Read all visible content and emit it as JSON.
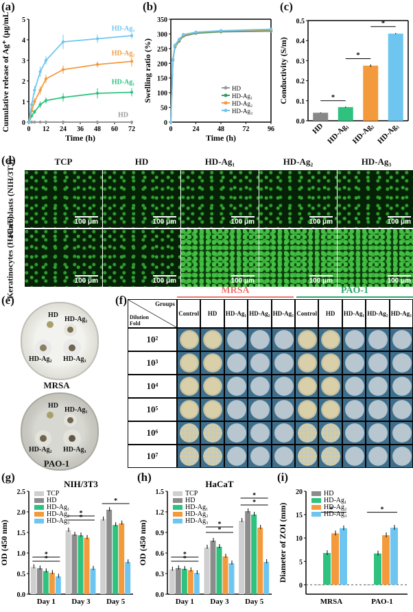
{
  "panel_labels": {
    "a": "(a)",
    "b": "(b)",
    "c": "(c)",
    "d": "(d)",
    "e": "(e)",
    "f": "(f)",
    "g": "(g)",
    "h": "(h)",
    "i": "(i)"
  },
  "chart_data": [
    {
      "id": "a",
      "type": "line",
      "xlabel": "Time (h)",
      "ylabel": "Cumulative release of Ag⁺ (μg/mL)",
      "xlim": [
        0,
        72
      ],
      "ylim": [
        0,
        5
      ],
      "xticks": [
        0,
        12,
        24,
        36,
        48,
        60,
        72
      ],
      "yticks": [
        0,
        1,
        2,
        3,
        4,
        5
      ],
      "x": [
        0,
        2,
        4,
        8,
        12,
        24,
        48,
        72
      ],
      "series": [
        {
          "name": "HD",
          "color": "#999999",
          "values": [
            0,
            0,
            0,
            0,
            0,
            0,
            0,
            0
          ]
        },
        {
          "name": "HD-Ag₁",
          "color": "#2ec27e",
          "values": [
            0,
            0.3,
            0.5,
            0.85,
            1.05,
            1.2,
            1.4,
            1.45
          ]
        },
        {
          "name": "HD-Ag₂",
          "color": "#f39a3d",
          "values": [
            0,
            0.55,
            1.0,
            1.55,
            2.1,
            2.55,
            2.8,
            2.95
          ]
        },
        {
          "name": "HD-Ag₃",
          "color": "#6ec6f0",
          "values": [
            0,
            0.85,
            1.55,
            2.45,
            3.0,
            3.9,
            4.05,
            4.2
          ]
        }
      ],
      "errors": [
        [
          0,
          0,
          0,
          0,
          0,
          0,
          0,
          0
        ],
        [
          0,
          0.05,
          0.1,
          0.15,
          0.15,
          0.2,
          0.25,
          0.2
        ],
        [
          0,
          0.1,
          0.15,
          0.2,
          0.2,
          0.2,
          0.15,
          0.25
        ],
        [
          0,
          0.1,
          0.2,
          0.25,
          0.2,
          0.35,
          0.2,
          0.15
        ]
      ]
    },
    {
      "id": "b",
      "type": "line",
      "xlabel": "Time (h)",
      "ylabel": "Swelling ratio (%)",
      "xlim": [
        0,
        96
      ],
      "ylim": [
        0,
        350
      ],
      "xticks": [
        0,
        24,
        48,
        72,
        96
      ],
      "yticks": [
        0,
        50,
        100,
        150,
        200,
        250,
        300,
        350
      ],
      "x": [
        0,
        2,
        4,
        8,
        12,
        24,
        48,
        96
      ],
      "series": [
        {
          "name": "HD",
          "color": "#999999",
          "values": [
            0,
            210,
            255,
            275,
            292,
            302,
            307,
            309
          ]
        },
        {
          "name": "HD-Ag₁",
          "color": "#2e9c5e",
          "values": [
            0,
            212,
            258,
            278,
            294,
            303,
            308,
            312
          ]
        },
        {
          "name": "HD-Ag₂",
          "color": "#f39a3d",
          "values": [
            0,
            214,
            260,
            280,
            296,
            305,
            310,
            314
          ]
        },
        {
          "name": "HD-Ag₃",
          "color": "#6ec6f0",
          "values": [
            0,
            213,
            262,
            282,
            298,
            306,
            311,
            316
          ]
        }
      ]
    },
    {
      "id": "c",
      "type": "bar",
      "ylabel": "Conductivity (S/m)",
      "ylim": [
        0,
        0.5
      ],
      "yticks": [
        0.0,
        0.1,
        0.2,
        0.3,
        0.4,
        0.5
      ],
      "categories": [
        "HD",
        "HD-Ag₁",
        "HD-Ag₂",
        "HD-Ag₃"
      ],
      "values": [
        0.04,
        0.068,
        0.275,
        0.435
      ],
      "errors": [
        0.002,
        0.003,
        0.006,
        0.003
      ],
      "colors": [
        "#888888",
        "#2ec27e",
        "#f39a3d",
        "#6ec6f0"
      ],
      "sig": "*"
    },
    {
      "id": "g",
      "type": "bar",
      "title": "NIH/3T3",
      "ylabel": "OD (450 nm)",
      "ylim": [
        0,
        2.5
      ],
      "yticks": [
        0.0,
        0.5,
        1.0,
        1.5,
        2.0,
        2.5
      ],
      "categories": [
        "Day 1",
        "Day 3",
        "Day 5"
      ],
      "series": [
        {
          "name": "TCP",
          "color": "#cfcfcf",
          "values": [
            0.66,
            1.55,
            1.82
          ]
        },
        {
          "name": "HD",
          "color": "#8c8c8c",
          "values": [
            0.63,
            1.45,
            2.05
          ]
        },
        {
          "name": "HD-Ag₁",
          "color": "#2ec27e",
          "values": [
            0.56,
            1.43,
            1.68
          ]
        },
        {
          "name": "HD-Ag₂",
          "color": "#f39a3d",
          "values": [
            0.52,
            1.37,
            1.72
          ]
        },
        {
          "name": "HD-Ag₃",
          "color": "#6ec6f0",
          "values": [
            0.43,
            0.62,
            0.78
          ]
        }
      ]
    },
    {
      "id": "h",
      "type": "bar",
      "title": "HaCaT",
      "ylabel": "OD (450 nm)",
      "ylim": [
        0,
        1.5
      ],
      "yticks": [
        0.0,
        0.3,
        0.6,
        0.9,
        1.2,
        1.5
      ],
      "categories": [
        "Day 1",
        "Day 3",
        "Day 5"
      ],
      "series": [
        {
          "name": "TCP",
          "color": "#cfcfcf",
          "values": [
            0.36,
            0.68,
            1.07
          ]
        },
        {
          "name": "HD",
          "color": "#8c8c8c",
          "values": [
            0.38,
            0.78,
            1.21
          ]
        },
        {
          "name": "HD-Ag₁",
          "color": "#2ec27e",
          "values": [
            0.37,
            0.69,
            1.16
          ]
        },
        {
          "name": "HD-Ag₂",
          "color": "#f39a3d",
          "values": [
            0.35,
            0.55,
            0.97
          ]
        },
        {
          "name": "HD-Ag₃",
          "color": "#6ec6f0",
          "values": [
            0.31,
            0.45,
            0.47
          ]
        }
      ]
    },
    {
      "id": "i",
      "type": "bar",
      "ylabel": "Diameter of ZOI (mm)",
      "ylim": [
        -2,
        20
      ],
      "yticks": [
        0,
        5,
        10,
        15,
        20
      ],
      "categories": [
        "MRSA",
        "PAO-1"
      ],
      "series": [
        {
          "name": "HD",
          "color": "#8c8c8c",
          "values": [
            0,
            0
          ]
        },
        {
          "name": "HD-Ag₁",
          "color": "#2ec27e",
          "values": [
            6.8,
            6.7
          ]
        },
        {
          "name": "HD-Ag₂",
          "color": "#f39a3d",
          "values": [
            11.0,
            10.6
          ]
        },
        {
          "name": "HD-Ag₃",
          "color": "#6ec6f0",
          "values": [
            12.1,
            12.2
          ]
        }
      ]
    }
  ],
  "panel_d": {
    "columns": [
      "TCP",
      "HD",
      "HD-Ag₁",
      "HD-Ag₂",
      "HD-Ag₃"
    ],
    "rows": [
      "Fibroblasts (NIH/3T3)",
      "Keratinocytes (HaCaT)"
    ],
    "scale": "100 μm"
  },
  "panel_e": {
    "plates": [
      {
        "name": "MRSA",
        "labels": [
          "HD",
          "HD-Ag₁",
          "HD-Ag₂",
          "HD-Ag₃"
        ]
      },
      {
        "name": "PAO-1",
        "labels": [
          "HD",
          "HD-Ag₁",
          "HD-Ag₂",
          "HD-Ag₃"
        ]
      }
    ]
  },
  "panel_f": {
    "corner_top": "Groups",
    "corner_bottom": "Dilution Fold",
    "group_mrsa": "MRSA",
    "group_pao": "PAO-1",
    "columns": [
      "Control",
      "HD",
      "HD-Ag₁",
      "HD-Ag₂",
      "HD-Ag₃",
      "Control",
      "HD",
      "HD-Ag₁",
      "HD-Ag₂",
      "HD-Ag₃"
    ],
    "rows": [
      "10²",
      "10³",
      "10⁴",
      "10⁵",
      "10⁶",
      "10⁷"
    ]
  }
}
